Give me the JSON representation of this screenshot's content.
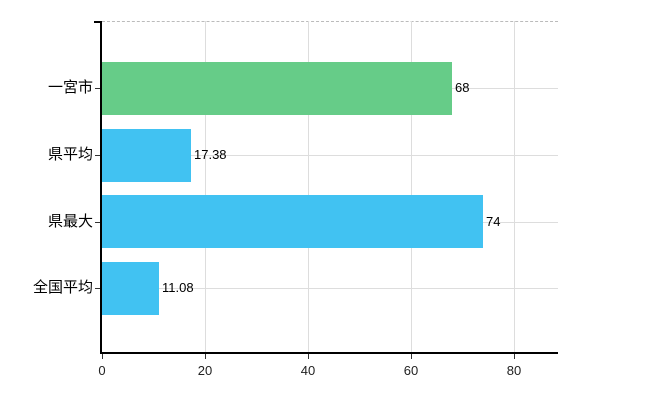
{
  "chart": {
    "background_color": "#ffffff",
    "axis_color": "#000000",
    "grid_color": "#dddddd",
    "top_border_color": "#bbbbbb",
    "tick_color": "#333333"
  },
  "chart_data": {
    "type": "bar",
    "orientation": "horizontal",
    "title": "",
    "xlabel": "",
    "ylabel": "",
    "categories": [
      "一宮市",
      "県平均",
      "県最大",
      "全国平均"
    ],
    "values": [
      68,
      17.38,
      74,
      11.08
    ],
    "value_labels": [
      "68",
      "17.38",
      "74",
      "11.08"
    ],
    "bar_colors": [
      "#66CC88",
      "#41C2F2",
      "#41C2F2",
      "#41C2F2"
    ],
    "x_ticks": [
      0,
      20,
      40,
      60,
      80
    ],
    "x_tick_labels": [
      "0",
      "20",
      "40",
      "60",
      "80"
    ],
    "xlim": [
      0,
      88.7
    ],
    "grid": true,
    "legend": null
  }
}
